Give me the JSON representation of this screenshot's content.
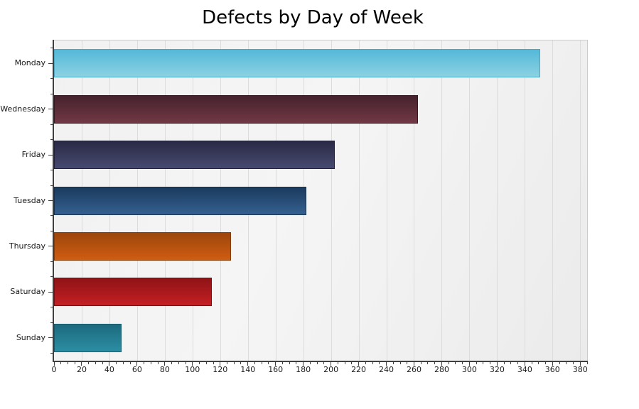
{
  "chart_data": {
    "type": "bar",
    "orientation": "horizontal",
    "title": "Defects by Day of Week",
    "categories": [
      "Monday",
      "Wednesday",
      "Friday",
      "Tuesday",
      "Thursday",
      "Saturday",
      "Sunday"
    ],
    "values": [
      351,
      263,
      203,
      182,
      128,
      114,
      49
    ],
    "xlabel": "",
    "ylabel": "",
    "xlim": [
      0,
      385
    ],
    "x_major_tick_step": 20,
    "x_minor_tick_step": 5,
    "x_tick_labels": [
      "0",
      "20",
      "40",
      "60",
      "80",
      "100",
      "120",
      "140",
      "160",
      "180",
      "200",
      "220",
      "240",
      "260",
      "280",
      "300",
      "320",
      "340",
      "360",
      "380"
    ],
    "grid": "vertical-major-on",
    "legend": "none",
    "bar_styles": [
      {
        "top": "#54b9d8",
        "bottom": "#8bd1e2",
        "border": "#4aa7c4"
      },
      {
        "top": "#44222d",
        "bottom": "#713844",
        "border": "#351a23"
      },
      {
        "top": "#2a2a45",
        "bottom": "#474a71",
        "border": "#22223a"
      },
      {
        "top": "#1b3a5e",
        "bottom": "#346090",
        "border": "#16304e"
      },
      {
        "top": "#9c470c",
        "bottom": "#d05c12",
        "border": "#833b0a"
      },
      {
        "top": "#8e1316",
        "bottom": "#c51f24",
        "border": "#771013"
      },
      {
        "top": "#1c6a7e",
        "bottom": "#2c8ea3",
        "border": "#175968"
      }
    ]
  },
  "colors": {
    "background": "#ffffff",
    "plot_background_light": "#f5f5f5",
    "plot_background_dark": "#ebebeb",
    "gridline": "#dcdcdc",
    "axis_line": "#3f3f3f",
    "plot_border": "#cbcbcb",
    "label_text": "#1a1a1a",
    "title_text": "#000000"
  }
}
